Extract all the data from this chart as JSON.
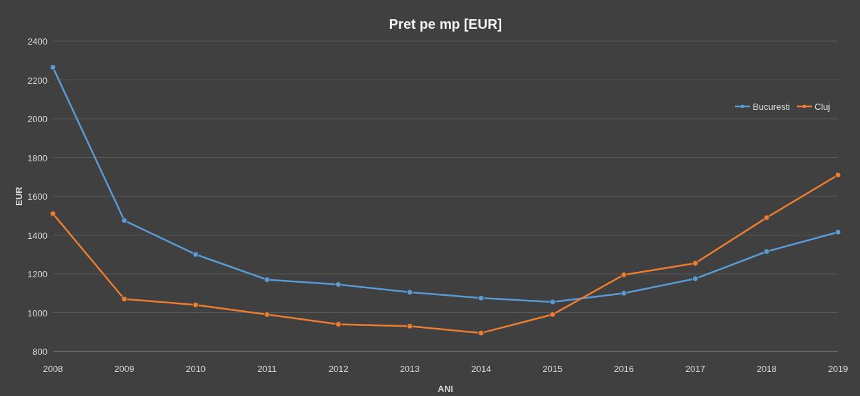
{
  "chart_data": {
    "type": "line",
    "title": "Pret pe mp [EUR]",
    "xlabel": "ANI",
    "ylabel": "EUR",
    "x": [
      2008,
      2009,
      2010,
      2011,
      2012,
      2013,
      2014,
      2015,
      2016,
      2017,
      2018,
      2019
    ],
    "xlim": [
      2008,
      2019
    ],
    "xticks": [
      2008,
      2009,
      2010,
      2011,
      2012,
      2013,
      2014,
      2015,
      2016,
      2017,
      2018,
      2019
    ],
    "ylim": [
      800,
      2400
    ],
    "yticks": [
      800,
      1000,
      1200,
      1400,
      1600,
      1800,
      2000,
      2200,
      2400
    ],
    "grid": "y",
    "legend": "top right",
    "marker": "circle",
    "series": [
      {
        "name": "Bucuresti",
        "color": "#5b9bd5",
        "values": [
          2265,
          1475,
          1300,
          1170,
          1145,
          1105,
          1075,
          1055,
          1100,
          1175,
          1315,
          1415
        ]
      },
      {
        "name": "Cluj",
        "color": "#ed7d31",
        "values": [
          1510,
          1070,
          1040,
          990,
          940,
          930,
          895,
          990,
          1195,
          1255,
          1490,
          1710
        ]
      }
    ]
  }
}
